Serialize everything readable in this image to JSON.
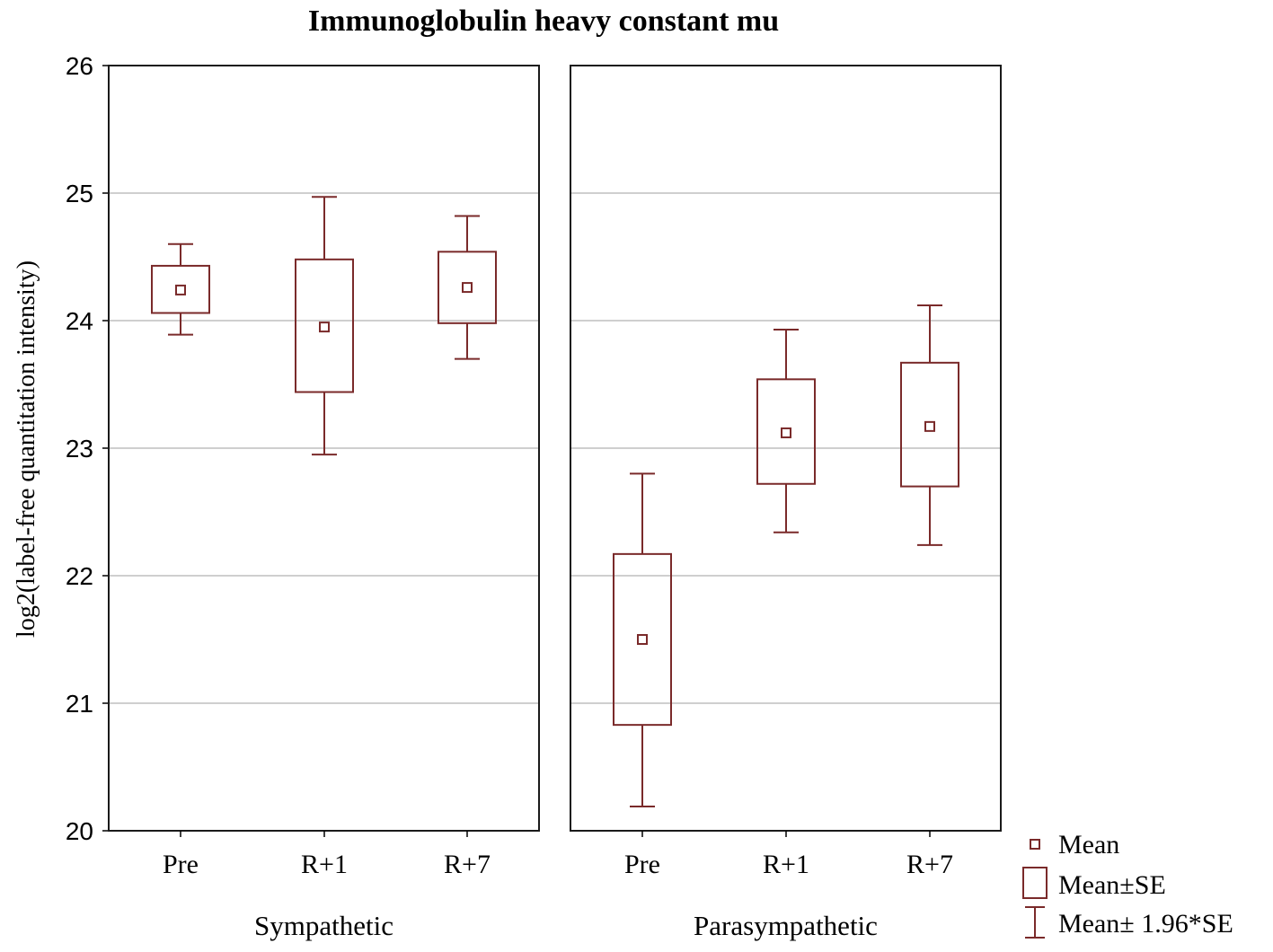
{
  "chart_data": {
    "type": "box",
    "title": "Immunoglobulin heavy constant mu",
    "ylabel": "log2(label-free quantitation intensity)",
    "ylim": [
      20,
      26
    ],
    "yticks": [
      "20",
      "21",
      "22",
      "23",
      "24",
      "25",
      "26"
    ],
    "grid": true,
    "color": "#7a2a2a",
    "legend": {
      "position": "bottom-right",
      "items": [
        {
          "symbol": "mean",
          "label": "Mean"
        },
        {
          "symbol": "se",
          "label": "Mean±SE"
        },
        {
          "symbol": "ci",
          "label": "Mean± 1.96*SE"
        }
      ]
    },
    "panels": [
      {
        "name": "Sympathetic",
        "categories": [
          "Pre",
          "R+1",
          "R+7"
        ],
        "mean": [
          24.24,
          23.95,
          24.26
        ],
        "se_low": [
          24.06,
          23.44,
          23.98
        ],
        "se_high": [
          24.43,
          24.48,
          24.54
        ],
        "ci_low": [
          23.89,
          22.95,
          23.7
        ],
        "ci_high": [
          24.6,
          24.97,
          24.82
        ]
      },
      {
        "name": "Parasympathetic",
        "categories": [
          "Pre",
          "R+1",
          "R+7"
        ],
        "mean": [
          21.5,
          23.12,
          23.17
        ],
        "se_low": [
          20.83,
          22.72,
          22.7
        ],
        "se_high": [
          22.17,
          23.54,
          23.67
        ],
        "ci_low": [
          20.19,
          22.34,
          22.24
        ],
        "ci_high": [
          22.8,
          23.93,
          24.12
        ]
      }
    ]
  }
}
